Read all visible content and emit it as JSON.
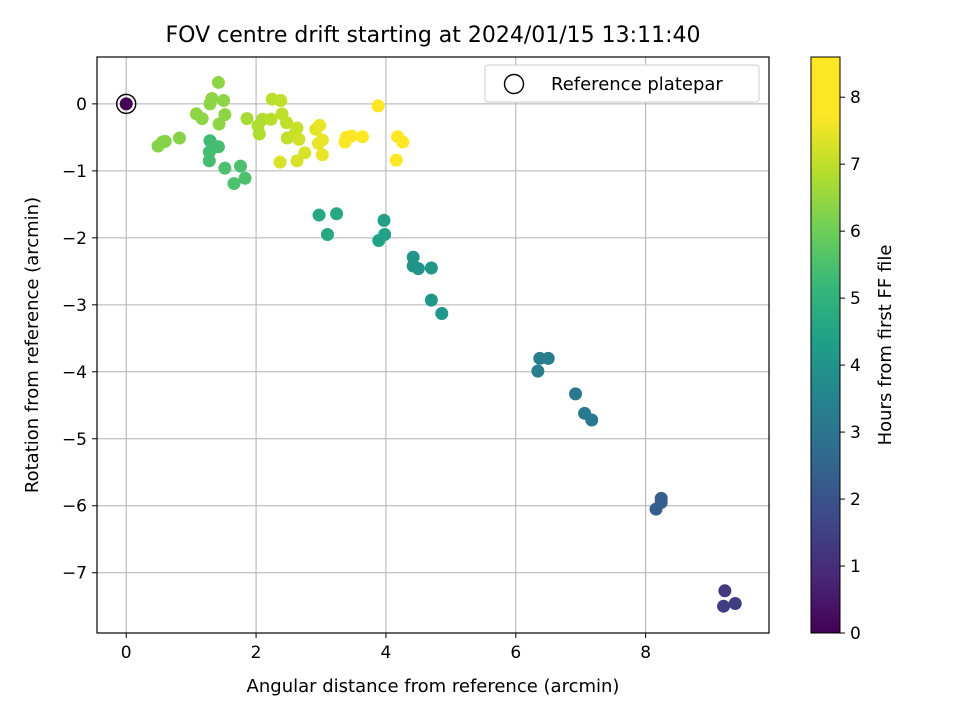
{
  "chart_data": {
    "type": "scatter",
    "title": "FOV centre drift starting at 2024/01/15 13:11:40",
    "xlabel": "Angular distance from reference (arcmin)",
    "ylabel": "Rotation from reference (arcmin)",
    "xlim": [
      -0.45,
      9.9
    ],
    "ylim": [
      -7.9,
      0.7
    ],
    "xticks": [
      0,
      2,
      4,
      6,
      8
    ],
    "xtick_labels": [
      "0",
      "2",
      "4",
      "6",
      "8"
    ],
    "yticks": [
      0,
      -1,
      -2,
      -3,
      -4,
      -5,
      -6,
      -7
    ],
    "ytick_labels": [
      "0",
      "−1",
      "−2",
      "−3",
      "−4",
      "−5",
      "−6",
      "−7"
    ],
    "grid": true,
    "legend": {
      "position": "top-right",
      "entries": [
        "Reference platepar"
      ]
    },
    "reference_point": {
      "x": 0,
      "y": 0,
      "hours": 0
    },
    "colorbar": {
      "label": "Hours from first FF file",
      "range": [
        0,
        8.6
      ],
      "ticks": [
        0,
        1,
        2,
        3,
        4,
        5,
        6,
        7,
        8
      ],
      "tick_labels": [
        "0",
        "1",
        "2",
        "3",
        "4",
        "5",
        "6",
        "7",
        "8"
      ],
      "colormap": "viridis"
    },
    "points": [
      {
        "x": 0,
        "y": 0,
        "h": 0.0
      },
      {
        "x": 9.22,
        "y": -7.27,
        "h": 1.3
      },
      {
        "x": 9.2,
        "y": -7.5,
        "h": 1.4
      },
      {
        "x": 9.38,
        "y": -7.46,
        "h": 1.4
      },
      {
        "x": 8.24,
        "y": -5.89,
        "h": 2.3
      },
      {
        "x": 8.24,
        "y": -5.95,
        "h": 2.3
      },
      {
        "x": 8.16,
        "y": -6.05,
        "h": 2.3
      },
      {
        "x": 6.92,
        "y": -4.33,
        "h": 3.1
      },
      {
        "x": 7.06,
        "y": -4.62,
        "h": 3.1
      },
      {
        "x": 7.17,
        "y": -4.72,
        "h": 3.1
      },
      {
        "x": 6.37,
        "y": -3.8,
        "h": 3.3
      },
      {
        "x": 6.5,
        "y": -3.8,
        "h": 3.3
      },
      {
        "x": 6.34,
        "y": -3.99,
        "h": 3.3
      },
      {
        "x": 4.42,
        "y": -2.29,
        "h": 4.0
      },
      {
        "x": 4.42,
        "y": -2.42,
        "h": 4.0
      },
      {
        "x": 4.5,
        "y": -2.46,
        "h": 4.0
      },
      {
        "x": 4.7,
        "y": -2.45,
        "h": 4.1
      },
      {
        "x": 4.7,
        "y": -2.93,
        "h": 4.1
      },
      {
        "x": 4.86,
        "y": -3.13,
        "h": 4.1
      },
      {
        "x": 2.97,
        "y": -1.66,
        "h": 4.6
      },
      {
        "x": 3.24,
        "y": -1.64,
        "h": 4.6
      },
      {
        "x": 3.1,
        "y": -1.95,
        "h": 4.6
      },
      {
        "x": 3.97,
        "y": -1.74,
        "h": 4.4
      },
      {
        "x": 3.98,
        "y": -1.95,
        "h": 4.4
      },
      {
        "x": 3.89,
        "y": -2.04,
        "h": 4.4
      },
      {
        "x": 1.29,
        "y": -0.55,
        "h": 5.3
      },
      {
        "x": 1.35,
        "y": -0.63,
        "h": 5.4
      },
      {
        "x": 1.42,
        "y": -0.64,
        "h": 5.4
      },
      {
        "x": 1.28,
        "y": -0.72,
        "h": 5.4
      },
      {
        "x": 1.28,
        "y": -0.85,
        "h": 5.4
      },
      {
        "x": 1.52,
        "y": -0.96,
        "h": 5.5
      },
      {
        "x": 1.76,
        "y": -0.93,
        "h": 5.5
      },
      {
        "x": 1.66,
        "y": -1.19,
        "h": 5.5
      },
      {
        "x": 1.83,
        "y": -1.11,
        "h": 5.5
      },
      {
        "x": 0.49,
        "y": -0.63,
        "h": 6.3
      },
      {
        "x": 0.56,
        "y": -0.57,
        "h": 6.3
      },
      {
        "x": 0.6,
        "y": -0.56,
        "h": 6.3
      },
      {
        "x": 0.82,
        "y": -0.51,
        "h": 6.3
      },
      {
        "x": 1.08,
        "y": -0.15,
        "h": 6.4
      },
      {
        "x": 1.17,
        "y": -0.22,
        "h": 6.4
      },
      {
        "x": 1.29,
        "y": 0.0,
        "h": 6.4
      },
      {
        "x": 1.32,
        "y": 0.08,
        "h": 6.4
      },
      {
        "x": 1.42,
        "y": 0.32,
        "h": 6.4
      },
      {
        "x": 1.5,
        "y": 0.05,
        "h": 6.4
      },
      {
        "x": 1.52,
        "y": -0.16,
        "h": 6.4
      },
      {
        "x": 1.43,
        "y": -0.3,
        "h": 6.4
      },
      {
        "x": 1.86,
        "y": -0.22,
        "h": 6.7
      },
      {
        "x": 2.03,
        "y": -0.33,
        "h": 6.8
      },
      {
        "x": 2.05,
        "y": -0.45,
        "h": 6.8
      },
      {
        "x": 2.1,
        "y": -0.23,
        "h": 6.8
      },
      {
        "x": 2.23,
        "y": -0.23,
        "h": 6.9
      },
      {
        "x": 2.25,
        "y": 0.07,
        "h": 6.9
      },
      {
        "x": 2.38,
        "y": 0.05,
        "h": 7.0
      },
      {
        "x": 2.4,
        "y": -0.15,
        "h": 7.0
      },
      {
        "x": 2.47,
        "y": -0.28,
        "h": 7.0
      },
      {
        "x": 2.48,
        "y": -0.51,
        "h": 7.0
      },
      {
        "x": 2.37,
        "y": -0.87,
        "h": 7.3
      },
      {
        "x": 2.6,
        "y": -0.44,
        "h": 7.1
      },
      {
        "x": 2.63,
        "y": -0.36,
        "h": 7.1
      },
      {
        "x": 2.66,
        "y": -0.53,
        "h": 7.2
      },
      {
        "x": 2.63,
        "y": -0.85,
        "h": 7.3
      },
      {
        "x": 2.75,
        "y": -0.73,
        "h": 7.3
      },
      {
        "x": 2.92,
        "y": -0.38,
        "h": 7.4
      },
      {
        "x": 2.98,
        "y": -0.32,
        "h": 7.5
      },
      {
        "x": 2.96,
        "y": -0.59,
        "h": 7.5
      },
      {
        "x": 3.02,
        "y": -0.54,
        "h": 7.5
      },
      {
        "x": 3.02,
        "y": -0.76,
        "h": 7.5
      },
      {
        "x": 3.37,
        "y": -0.57,
        "h": 7.9
      },
      {
        "x": 3.39,
        "y": -0.5,
        "h": 7.9
      },
      {
        "x": 3.47,
        "y": -0.48,
        "h": 7.9
      },
      {
        "x": 3.64,
        "y": -0.49,
        "h": 8.0
      },
      {
        "x": 3.88,
        "y": -0.03,
        "h": 8.1
      },
      {
        "x": 4.18,
        "y": -0.49,
        "h": 8.4
      },
      {
        "x": 4.26,
        "y": -0.57,
        "h": 8.5
      },
      {
        "x": 4.16,
        "y": -0.84,
        "h": 8.6
      }
    ]
  }
}
